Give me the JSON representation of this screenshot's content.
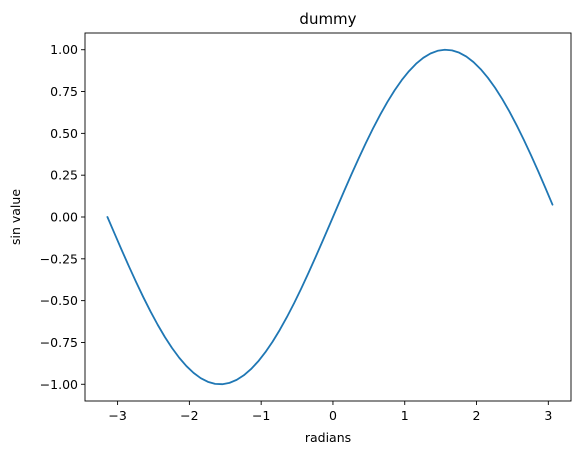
{
  "chart_data": {
    "type": "line",
    "title": "dummy",
    "xlabel": "radians",
    "ylabel": "sin value",
    "xlim": [
      -3.454,
      3.316
    ],
    "ylim": [
      -1.1,
      1.1
    ],
    "xticks": [
      -3,
      -2,
      -1,
      0,
      1,
      2,
      3
    ],
    "xtick_labels": [
      "−3",
      "−2",
      "−1",
      "0",
      "1",
      "2",
      "3"
    ],
    "yticks": [
      -1.0,
      -0.75,
      -0.5,
      -0.25,
      0.0,
      0.25,
      0.5,
      0.75,
      1.0
    ],
    "ytick_labels": [
      "−1.00",
      "−0.75",
      "−0.50",
      "−0.25",
      "0.00",
      "0.25",
      "0.50",
      "0.75",
      "1.00"
    ],
    "grid": false,
    "legend": "none",
    "colors": {
      "line": "#1f77b4",
      "axes": "#000000"
    },
    "series": [
      {
        "x": [
          -3.1416,
          -3.0416,
          -2.9416,
          -2.8416,
          -2.7416,
          -2.6416,
          -2.5416,
          -2.4416,
          -2.3416,
          -2.2416,
          -2.1416,
          -2.0416,
          -1.9416,
          -1.8416,
          -1.7416,
          -1.6416,
          -1.5416,
          -1.4416,
          -1.3416,
          -1.2416,
          -1.1416,
          -1.0416,
          -0.9416,
          -0.8416,
          -0.7416,
          -0.6416,
          -0.5416,
          -0.4416,
          -0.3416,
          -0.2416,
          -0.1416,
          -0.0416,
          0.0584,
          0.1584,
          0.2584,
          0.3584,
          0.4584,
          0.5584,
          0.6584,
          0.7584,
          0.8584,
          0.9584,
          1.0584,
          1.1584,
          1.2584,
          1.3584,
          1.4584,
          1.5584,
          1.6584,
          1.7584,
          1.8584,
          1.9584,
          2.0584,
          2.1584,
          2.2584,
          2.3584,
          2.4584,
          2.5584,
          2.6584,
          2.7584,
          2.8584,
          2.9584,
          3.0584
        ],
        "y": [
          0.0,
          -0.0998,
          -0.1987,
          -0.2955,
          -0.3894,
          -0.4794,
          -0.5646,
          -0.6442,
          -0.7174,
          -0.7833,
          -0.8415,
          -0.8912,
          -0.932,
          -0.9636,
          -0.9854,
          -0.9975,
          -0.9996,
          -0.9917,
          -0.9738,
          -0.9463,
          -0.9093,
          -0.8632,
          -0.8085,
          -0.7457,
          -0.6755,
          -0.5985,
          -0.5155,
          -0.4274,
          -0.335,
          -0.2392,
          -0.1411,
          -0.0416,
          0.0584,
          0.1577,
          0.2555,
          0.3508,
          0.4425,
          0.5298,
          0.6118,
          0.6878,
          0.7568,
          0.8183,
          0.8716,
          0.9162,
          0.9516,
          0.9775,
          0.9937,
          0.9999,
          0.9962,
          0.9825,
          0.959,
          0.9259,
          0.8835,
          0.8322,
          0.7726,
          0.705,
          0.6303,
          0.549,
          0.462,
          0.3701,
          0.2741,
          0.175,
          0.0737
        ]
      }
    ]
  }
}
